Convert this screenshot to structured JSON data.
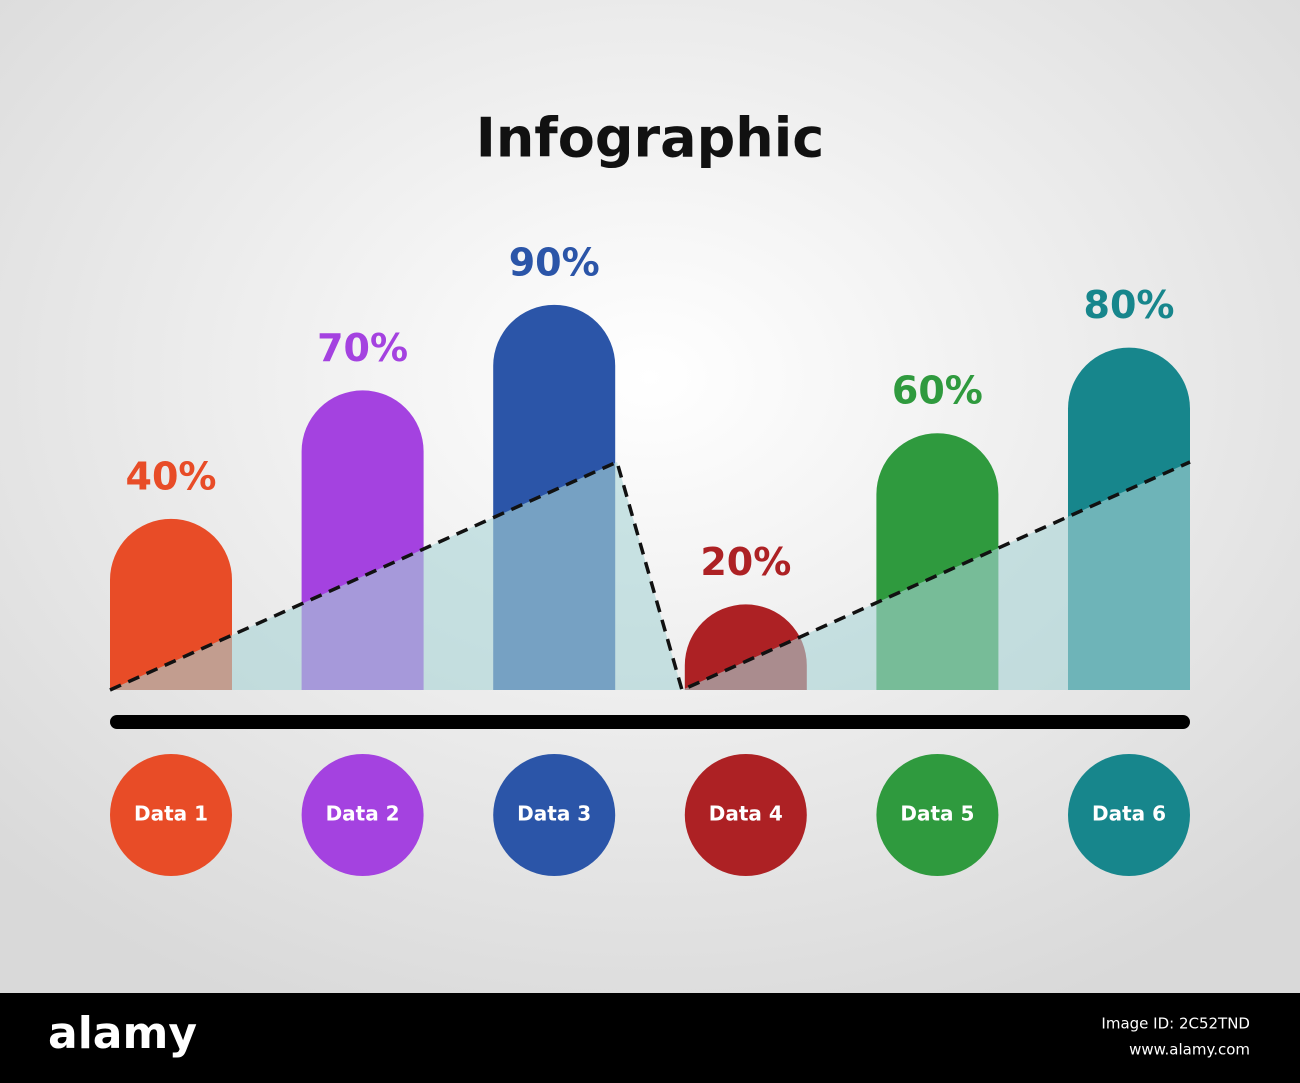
{
  "chart_data": {
    "type": "bar",
    "title": "Infographic",
    "categories": [
      "Data 1",
      "Data 2",
      "Data 3",
      "Data 4",
      "Data 5",
      "Data 6"
    ],
    "values": [
      40,
      70,
      90,
      20,
      60,
      80
    ],
    "value_labels": [
      "40%",
      "70%",
      "90%",
      "20%",
      "60%",
      "80%"
    ],
    "colors": [
      "#e84c27",
      "#a442e0",
      "#2b55a8",
      "#ad2124",
      "#2f9a3e",
      "#17868c"
    ]
  },
  "watermark": {
    "logo": "alamy",
    "image_id": "Image ID: 2C52TND",
    "url": "www.alamy.com"
  }
}
